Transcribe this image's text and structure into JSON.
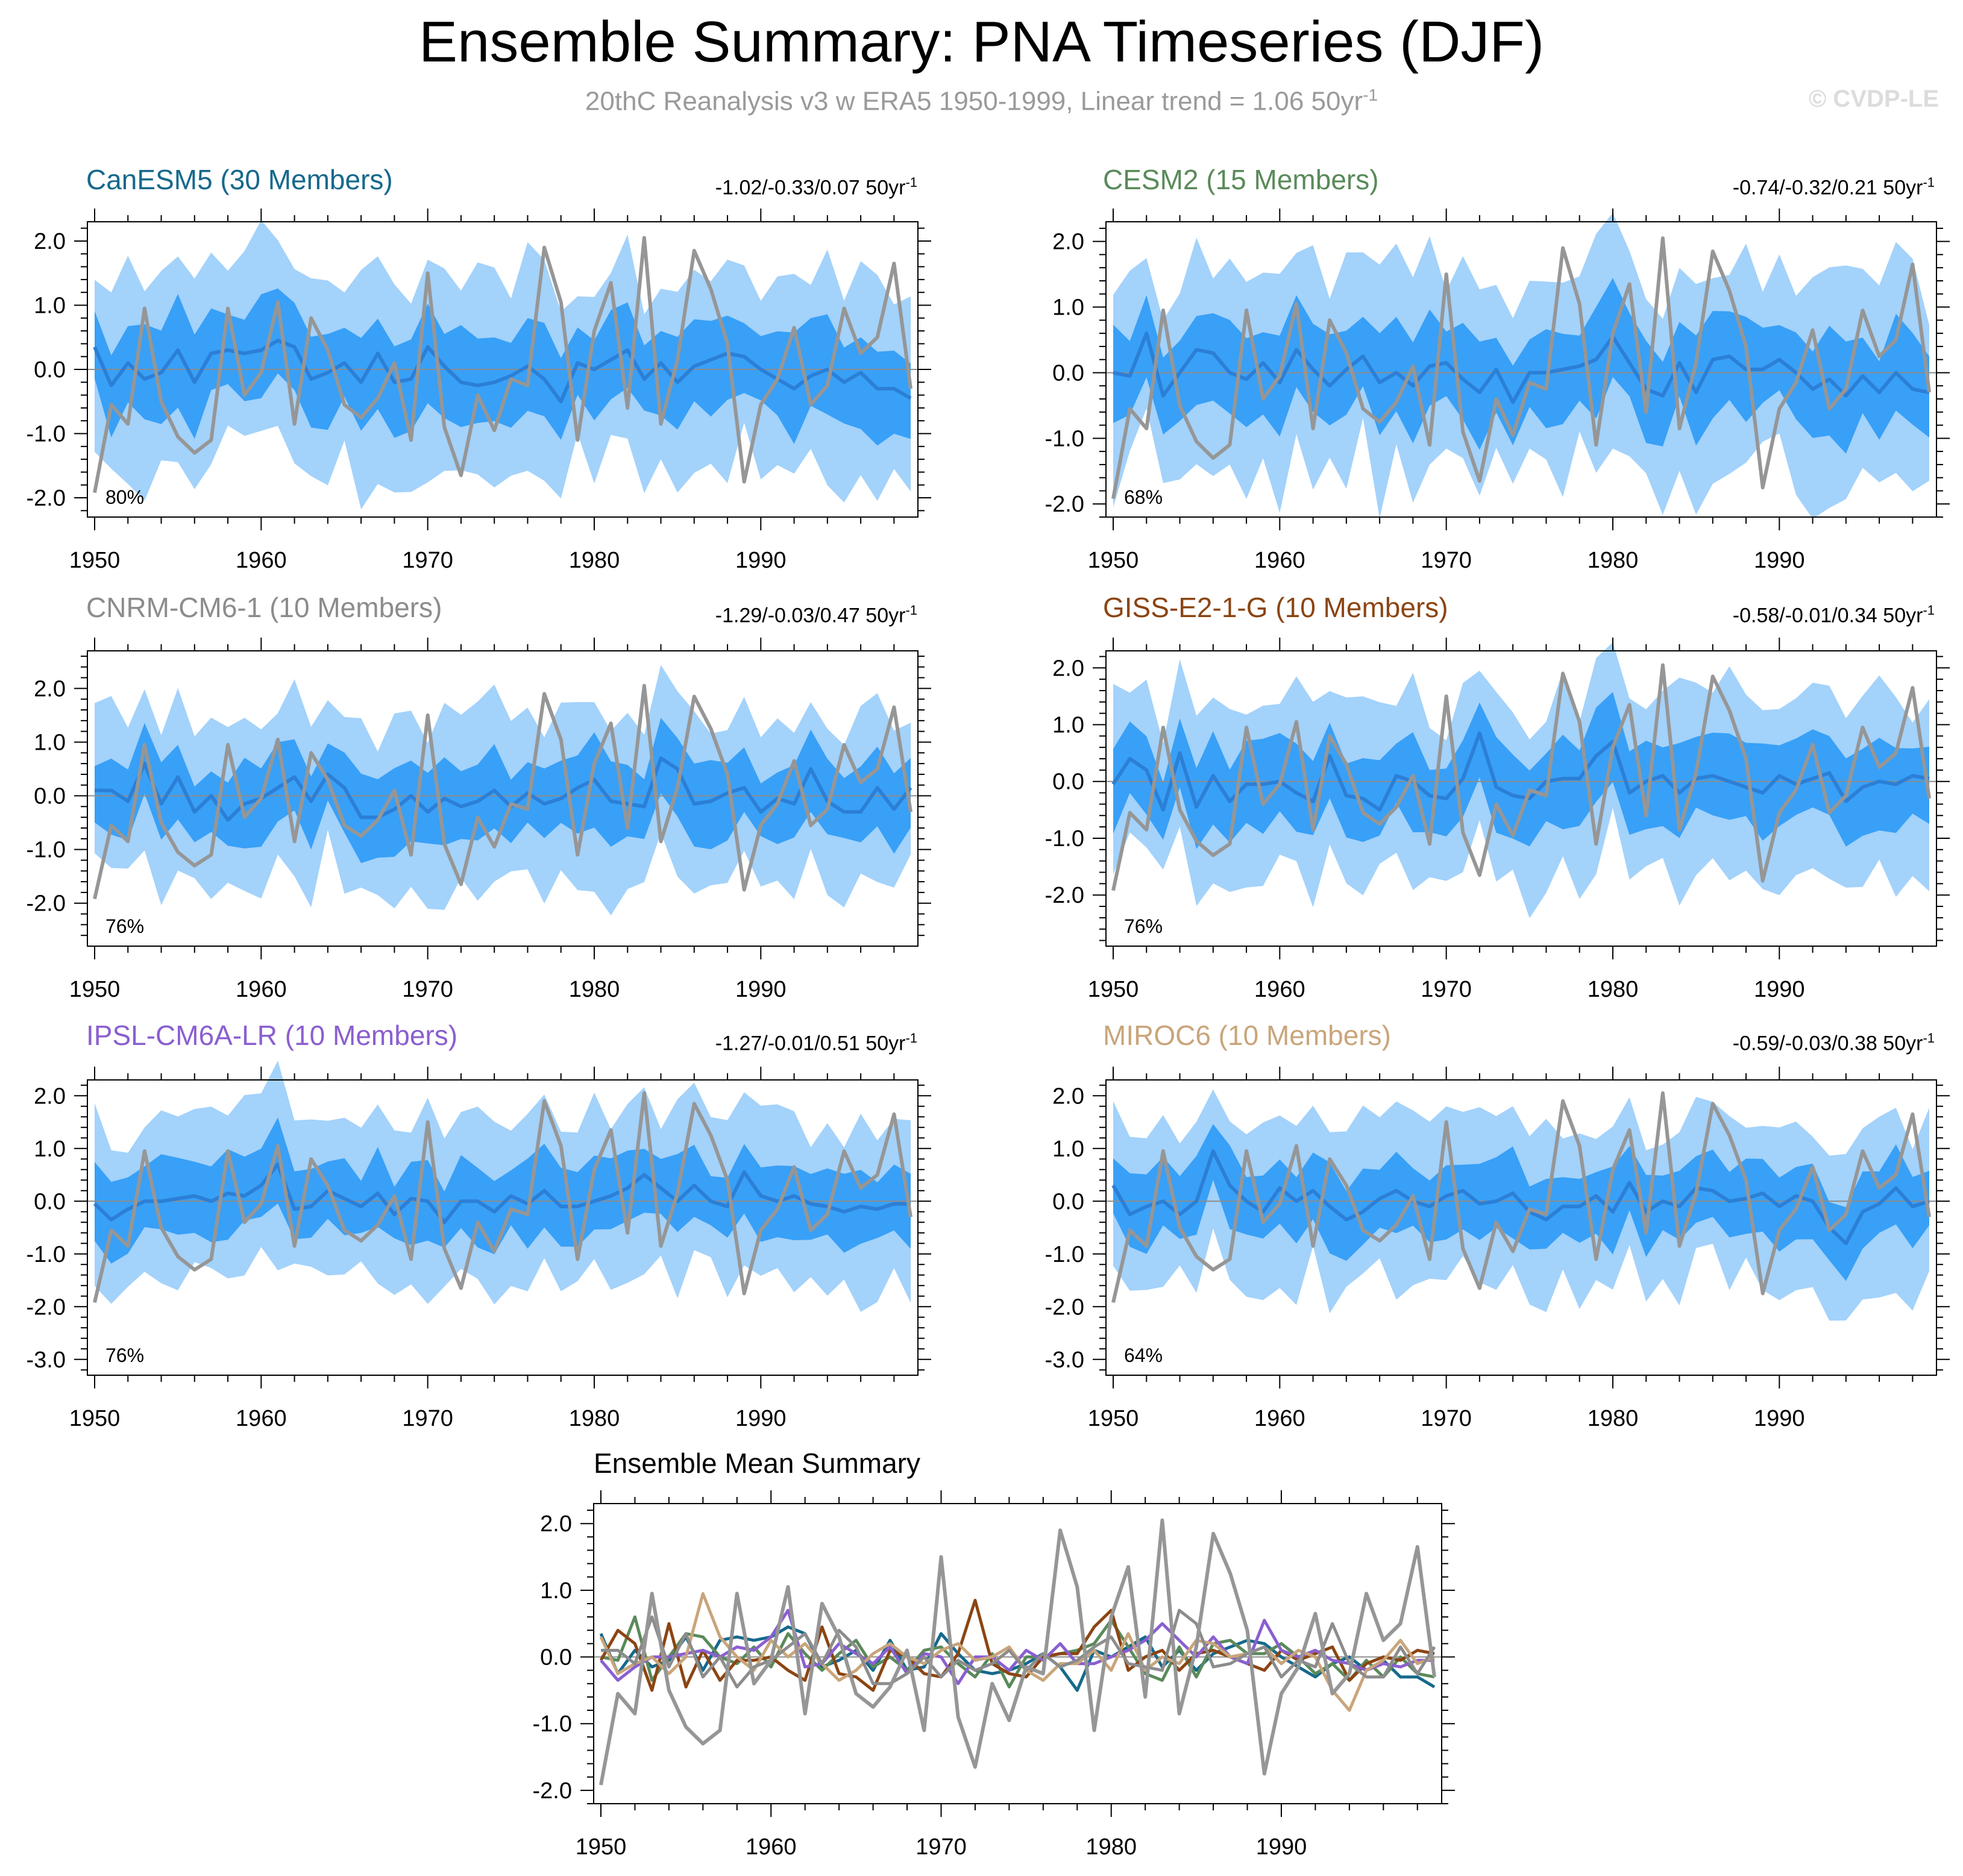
{
  "header": {
    "title": "Ensemble Summary: PNA Timeseries (DJF)",
    "subtitle_text": "20thC Reanalysis v3 w ERA5 1950-1999, Linear trend = 1.06 50yr",
    "subtitle_sup": "-1",
    "watermark": "© CVDP-LE"
  },
  "colors": {
    "band_outer": "#a3d2fb",
    "band_inner": "#38a0f7",
    "ensemble_mean": "#2c7fd6",
    "observations": "#969696",
    "zero_line": "#8c8c8c"
  },
  "chart_data": [
    {
      "type": "line",
      "name": "CanESM5",
      "title": "CanESM5 (30 Members)",
      "title_color": "#16698c",
      "stats": "-1.02/-0.33/0.07 50yr",
      "stats_sup": "-1",
      "pct": "80%",
      "ylim": [
        -2.3,
        2.3
      ],
      "yticks": [
        2.0,
        1.0,
        0.0,
        -1.0,
        -2.0
      ],
      "ytick_labels": [
        "2.0",
        "1.0",
        "0.0",
        "-1.0",
        "-2.0"
      ],
      "mean": [
        0.35,
        -0.25,
        0.1,
        -0.15,
        -0.05,
        0.3,
        -0.2,
        0.25,
        0.3,
        0.25,
        0.3,
        0.45,
        0.35,
        -0.15,
        -0.05,
        0.1,
        -0.2,
        0.25,
        -0.2,
        -0.15,
        0.35,
        0.05,
        -0.2,
        -0.25,
        -0.2,
        -0.1,
        0.05,
        -0.15,
        -0.5,
        0.1,
        0.0,
        0.15,
        0.3,
        -0.15,
        0.1,
        -0.2,
        0.05,
        0.15,
        0.25,
        0.2,
        0.0,
        -0.15,
        -0.3,
        -0.1,
        0.0,
        -0.2,
        -0.05,
        -0.3,
        -0.3,
        -0.45
      ]
    },
    {
      "type": "line",
      "name": "CESM2",
      "title": "CESM2 (15 Members)",
      "title_color": "#5a8a5a",
      "stats": "-0.74/-0.32/0.21 50yr",
      "stats_sup": "-1",
      "pct": "68%",
      "ylim": [
        -2.2,
        2.3
      ],
      "yticks": [
        2.0,
        1.0,
        0.0,
        -1.0,
        -2.0
      ],
      "ytick_labels": [
        "2.0",
        "1.0",
        "0.0",
        "-1.0",
        "-2.0"
      ],
      "mean": [
        0.0,
        -0.05,
        0.6,
        -0.35,
        0.0,
        0.35,
        0.3,
        0.0,
        -0.1,
        0.15,
        -0.15,
        0.35,
        0.05,
        -0.2,
        0.05,
        0.25,
        -0.15,
        0.0,
        -0.2,
        0.1,
        0.15,
        -0.1,
        -0.3,
        0.05,
        -0.45,
        0.0,
        0.0,
        0.05,
        0.1,
        0.2,
        0.55,
        0.15,
        -0.25,
        -0.35,
        0.15,
        -0.3,
        0.2,
        0.25,
        0.05,
        0.05,
        0.2,
        0.0,
        -0.25,
        -0.1,
        -0.35,
        -0.05,
        -0.3,
        0.0,
        -0.25,
        -0.3
      ]
    },
    {
      "type": "line",
      "name": "CNRM-CM6-1",
      "title": "CNRM-CM6-1 (10 Members)",
      "title_color": "#8c8c8c",
      "stats": "-1.29/-0.03/0.47 50yr",
      "stats_sup": "-1",
      "pct": "76%",
      "ylim": [
        -2.8,
        2.7
      ],
      "yticks": [
        2.0,
        1.0,
        0.0,
        -1.0,
        -2.0
      ],
      "ytick_labels": [
        "2.0",
        "1.0",
        "0.0",
        "-1.0",
        "-2.0"
      ],
      "mean": [
        0.1,
        0.1,
        -0.1,
        0.6,
        -0.15,
        0.35,
        -0.3,
        0.0,
        -0.45,
        -0.15,
        -0.05,
        0.15,
        0.35,
        -0.1,
        0.4,
        0.15,
        -0.4,
        -0.4,
        -0.25,
        0.0,
        -0.3,
        -0.05,
        -0.2,
        -0.1,
        0.1,
        -0.2,
        0.05,
        -0.15,
        -0.05,
        0.15,
        0.3,
        -0.1,
        -0.15,
        -0.2,
        0.7,
        0.5,
        -0.15,
        -0.1,
        0.05,
        0.15,
        -0.3,
        -0.05,
        -0.15,
        0.5,
        -0.1,
        -0.3,
        -0.3,
        0.15,
        -0.25,
        0.15
      ]
    },
    {
      "type": "line",
      "name": "GISS-E2-1-G",
      "title": "GISS-E2-1-G (10 Members)",
      "title_color": "#8b4513",
      "stats": "-0.58/-0.01/0.34 50yr",
      "stats_sup": "-1",
      "pct": "76%",
      "ylim": [
        -2.9,
        2.3
      ],
      "yticks": [
        2.0,
        1.0,
        0.0,
        -1.0,
        -2.0
      ],
      "ytick_labels": [
        "2.0",
        "1.0",
        "0.0",
        "-1.0",
        "-2.0"
      ],
      "mean": [
        -0.05,
        0.4,
        0.2,
        -0.5,
        0.5,
        -0.45,
        0.1,
        -0.35,
        -0.05,
        -0.05,
        0.0,
        -0.2,
        -0.35,
        0.45,
        -0.25,
        -0.3,
        -0.5,
        0.1,
        0.0,
        -0.25,
        -0.3,
        0.05,
        0.85,
        -0.1,
        -0.25,
        -0.3,
        0.0,
        0.05,
        0.05,
        0.45,
        0.7,
        -0.2,
        0.0,
        0.1,
        -0.2,
        0.05,
        0.1,
        0.0,
        -0.1,
        -0.2,
        0.1,
        -0.05,
        0.05,
        0.15,
        -0.35,
        -0.1,
        0.0,
        -0.05,
        0.1,
        0.05
      ]
    },
    {
      "type": "line",
      "name": "IPSL-CM6A-LR",
      "title": "IPSL-CM6A-LR (10 Members)",
      "title_color": "#8a5fd0",
      "stats": "-1.27/-0.01/0.51 50yr",
      "stats_sup": "-1",
      "pct": "76%",
      "ylim": [
        -3.3,
        2.3
      ],
      "yticks": [
        2.0,
        1.0,
        0.0,
        -1.0,
        -2.0,
        -3.0
      ],
      "ytick_labels": [
        "2.0",
        "1.0",
        "0.0",
        "-1.0",
        "-2.0",
        "-3.0"
      ],
      "mean": [
        -0.05,
        -0.35,
        -0.15,
        0.0,
        0.0,
        0.05,
        0.1,
        0.0,
        0.15,
        0.1,
        0.3,
        0.7,
        -0.15,
        -0.1,
        0.2,
        0.05,
        -0.1,
        0.15,
        -0.25,
        0.05,
        0.0,
        -0.4,
        0.0,
        0.0,
        -0.2,
        0.1,
        -0.05,
        0.2,
        -0.1,
        -0.1,
        0.0,
        0.1,
        0.25,
        0.5,
        0.25,
        0.0,
        0.3,
        0.0,
        -0.1,
        0.55,
        0.1,
        0.0,
        0.1,
        -0.05,
        -0.1,
        -0.2,
        -0.1,
        -0.15,
        -0.05,
        -0.05
      ]
    },
    {
      "type": "line",
      "name": "MIROC6",
      "title": "MIROC6 (10 Members)",
      "title_color": "#c9a57b",
      "stats": "-0.59/-0.03/0.38 50yr",
      "stats_sup": "-1",
      "pct": "64%",
      "ylim": [
        -3.3,
        2.3
      ],
      "yticks": [
        2.0,
        1.0,
        0.0,
        -1.0,
        -2.0,
        -3.0
      ],
      "ytick_labels": [
        "2.0",
        "1.0",
        "0.0",
        "-1.0",
        "-2.0",
        "-3.0"
      ],
      "mean": [
        0.3,
        -0.25,
        -0.1,
        0.0,
        -0.25,
        0.0,
        0.95,
        0.3,
        0.0,
        -0.2,
        0.25,
        0.0,
        0.2,
        -0.1,
        -0.35,
        -0.2,
        0.05,
        0.2,
        0.0,
        -0.1,
        0.1,
        0.2,
        -0.05,
        0.0,
        0.15,
        -0.2,
        -0.35,
        -0.1,
        -0.1,
        0.1,
        -0.2,
        0.35,
        -0.2,
        0.0,
        -0.1,
        0.25,
        0.2,
        0.0,
        0.05,
        0.15,
        -0.1,
        0.1,
        0.0,
        -0.5,
        -0.8,
        -0.2,
        -0.05,
        0.25,
        -0.1,
        0.0
      ]
    },
    {
      "type": "line",
      "name": "Ensemble Mean Summary",
      "title": "Ensemble Mean Summary",
      "ylim": [
        -2.2,
        2.3
      ],
      "yticks": [
        2.0,
        1.0,
        0.0,
        -1.0,
        -2.0
      ],
      "ytick_labels": [
        "2.0",
        "1.0",
        "0.0",
        "-1.0",
        "-2.0"
      ],
      "series_colors": [
        "#16698c",
        "#5a8a5a",
        "#8c8c8c",
        "#8b4513",
        "#8a5fd0",
        "#c9a57b"
      ]
    }
  ],
  "shared": {
    "x_start": 1950,
    "x_end": 1999,
    "xticks": [
      1950,
      1960,
      1970,
      1980,
      1990
    ],
    "xtick_labels": [
      "1950",
      "1960",
      "1970",
      "1980",
      "1990"
    ],
    "observations": [
      -1.92,
      -0.55,
      -0.85,
      0.95,
      -0.5,
      -1.05,
      -1.3,
      -1.1,
      0.95,
      -0.4,
      -0.05,
      1.05,
      -0.85,
      0.8,
      0.3,
      -0.55,
      -0.75,
      -0.45,
      0.1,
      -1.1,
      1.5,
      -0.9,
      -1.65,
      -0.4,
      -0.95,
      -0.15,
      -0.25,
      1.9,
      1.05,
      -1.1,
      0.6,
      1.35,
      -0.6,
      2.05,
      -0.85,
      0.15,
      1.85,
      1.25,
      0.4,
      -1.75,
      -0.55,
      -0.15,
      0.65,
      -0.55,
      -0.25,
      0.95,
      0.25,
      0.5,
      1.65,
      -0.3
    ]
  }
}
